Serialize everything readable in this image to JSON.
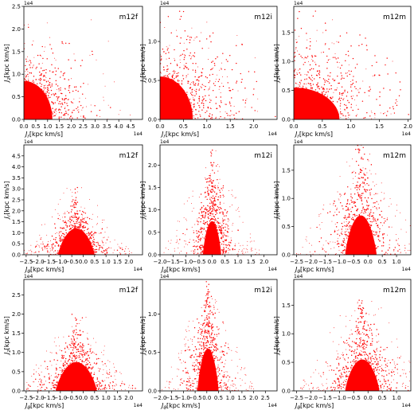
{
  "chart_data": [
    {
      "type": "scatter",
      "panel_label": "m12f",
      "xlabel_sym": "J",
      "xlabel_sub": "r",
      "ylabel_sym": "J",
      "ylabel_sub": "z",
      "units": "[kpc km/s]",
      "x_offset": "1e4",
      "y_offset": "1e4",
      "xlim": [
        0,
        5.0
      ],
      "ylim": [
        0,
        2.5
      ],
      "xticks": [
        "0.0",
        "0.5",
        "1.0",
        "1.5",
        "2.0",
        "2.5",
        "3.0",
        "3.5",
        "4.0",
        "4.5"
      ],
      "xtick_values": [
        0,
        0.5,
        1.0,
        1.5,
        2.0,
        2.5,
        3.0,
        3.5,
        4.0,
        4.5
      ],
      "yticks": [
        "0.0",
        "0.5",
        "1.0",
        "1.5",
        "2.0",
        "2.5"
      ],
      "ytick_values": [
        0,
        0.5,
        1.0,
        1.5,
        2.0,
        2.5
      ],
      "color": "#ff0000",
      "distribution": {
        "shape": "corner",
        "core": {
          "x_max": 1.2,
          "y_max": 0.85,
          "density": "saturated"
        },
        "halo": {
          "x_max": 2.0,
          "y_max": 1.25
        },
        "sparse": {
          "x_max": 4.6,
          "y_max": 2.4
        }
      }
    },
    {
      "type": "scatter",
      "panel_label": "m12i",
      "xlabel_sym": "J",
      "xlabel_sub": "r",
      "ylabel_sym": "J",
      "ylabel_sub": "z",
      "units": "[kpc km/s]",
      "x_offset": "1e4",
      "y_offset": "1e4",
      "xlim": [
        0,
        2.5
      ],
      "ylim": [
        0,
        1.45
      ],
      "xticks": [
        "0.0",
        "0.5",
        "1.0",
        "1.5",
        "2.0"
      ],
      "xtick_values": [
        0,
        0.5,
        1.0,
        1.5,
        2.0
      ],
      "yticks": [
        "0.0",
        "0.5",
        "1.0"
      ],
      "ytick_values": [
        0,
        0.5,
        1.0
      ],
      "color": "#ff0000",
      "distribution": {
        "shape": "corner",
        "core": {
          "x_max": 0.7,
          "y_max": 0.55,
          "density": "saturated"
        },
        "halo": {
          "x_max": 1.6,
          "y_max": 0.95
        },
        "sparse": {
          "x_max": 2.4,
          "y_max": 1.4
        }
      }
    },
    {
      "type": "scatter",
      "panel_label": "m12m",
      "xlabel_sym": "J",
      "xlabel_sub": "r",
      "ylabel_sym": "J",
      "ylabel_sub": "z",
      "units": "[kpc km/s]",
      "x_offset": "1e4",
      "y_offset": "1e4",
      "xlim": [
        0,
        2.05
      ],
      "ylim": [
        0,
        1.95
      ],
      "xticks": [
        "0.0",
        "0.5",
        "1.0",
        "1.5",
        "2.0"
      ],
      "xtick_values": [
        0,
        0.5,
        1.0,
        1.5,
        2.0
      ],
      "yticks": [
        "0.0",
        "0.5",
        "1.0",
        "1.5"
      ],
      "ytick_values": [
        0,
        0.5,
        1.0,
        1.5
      ],
      "color": "#ff0000",
      "distribution": {
        "shape": "corner",
        "core": {
          "x_max": 0.8,
          "y_max": 0.55,
          "density": "saturated"
        },
        "halo": {
          "x_max": 1.5,
          "y_max": 1.1
        },
        "sparse": {
          "x_max": 2.0,
          "y_max": 1.9
        }
      }
    },
    {
      "type": "scatter",
      "panel_label": "m12f",
      "xlabel_sym": "J",
      "xlabel_sub": "θ",
      "ylabel_sym": "J",
      "ylabel_sub": "r",
      "units": "[kpc km/s]",
      "x_offset": "1e4",
      "y_offset": "1e4",
      "xlim": [
        -2.6,
        2.6
      ],
      "ylim": [
        0,
        5.0
      ],
      "xticks": [
        "−2.5",
        "−2.0",
        "−1.5",
        "−1.0",
        "−0.5",
        "0.0",
        "0.5",
        "1.0",
        "1.5",
        "2.0"
      ],
      "xtick_values": [
        -2.5,
        -2.0,
        -1.5,
        -1.0,
        -0.5,
        0,
        0.5,
        1.0,
        1.5,
        2.0
      ],
      "yticks": [
        "0.0",
        "0.5",
        "1.0",
        "1.5",
        "2.0",
        "2.5",
        "3.0",
        "3.5",
        "4.0",
        "4.5"
      ],
      "ytick_values": [
        0,
        0.5,
        1.0,
        1.5,
        2.0,
        2.5,
        3.0,
        3.5,
        4.0,
        4.5
      ],
      "color": "#ff0000",
      "distribution": {
        "shape": "fan",
        "center_x": -0.3,
        "core": {
          "x_half": 0.8,
          "y_max": 1.2,
          "density": "saturated"
        },
        "halo": {
          "x_half": 1.6,
          "y_max": 2.0
        },
        "sparse": {
          "x_half": 2.5,
          "y_max": 3.3
        }
      }
    },
    {
      "type": "scatter",
      "panel_label": "m12i",
      "xlabel_sym": "J",
      "xlabel_sub": "θ",
      "ylabel_sym": "J",
      "ylabel_sub": "r",
      "units": "[kpc km/s]",
      "x_offset": "1e4",
      "y_offset": "1e4",
      "xlim": [
        -2.0,
        2.5
      ],
      "ylim": [
        0,
        2.45
      ],
      "xticks": [
        "−2.0",
        "−1.5",
        "−1.0",
        "−0.5",
        "0.0",
        "0.5",
        "1.0",
        "1.5",
        "2.0"
      ],
      "xtick_values": [
        -2.0,
        -1.5,
        -1.0,
        -0.5,
        0,
        0.5,
        1.0,
        1.5,
        2.0
      ],
      "yticks": [
        "0.0",
        "0.5",
        "1.0",
        "1.5",
        "2.0"
      ],
      "ytick_values": [
        0,
        0.5,
        1.0,
        1.5,
        2.0
      ],
      "color": "#ff0000",
      "distribution": {
        "shape": "fan",
        "center_x": 0.0,
        "core": {
          "x_half": 0.35,
          "y_max": 0.75,
          "density": "saturated"
        },
        "halo": {
          "x_half": 0.9,
          "y_max": 1.8
        },
        "sparse": {
          "x_half": 1.9,
          "y_max": 2.4
        }
      }
    },
    {
      "type": "scatter",
      "panel_label": "m12m",
      "xlabel_sym": "J",
      "xlabel_sub": "θ",
      "ylabel_sym": "J",
      "ylabel_sub": "r",
      "units": "[kpc km/s]",
      "x_offset": "1e4",
      "y_offset": "1e4",
      "xlim": [
        -2.6,
        1.5
      ],
      "ylim": [
        0,
        1.95
      ],
      "xticks": [
        "−2.5",
        "−2.0",
        "−1.5",
        "−1.0",
        "−0.5",
        "0.0",
        "0.5",
        "1.0"
      ],
      "xtick_values": [
        -2.5,
        -2.0,
        -1.5,
        -1.0,
        -0.5,
        0,
        0.5,
        1.0
      ],
      "yticks": [
        "0.0",
        "0.5",
        "1.0",
        "1.5"
      ],
      "ytick_values": [
        0,
        0.5,
        1.0,
        1.5
      ],
      "color": "#ff0000",
      "distribution": {
        "shape": "fan",
        "center_x": -0.25,
        "core": {
          "x_half": 0.55,
          "y_max": 0.7,
          "density": "saturated"
        },
        "halo": {
          "x_half": 1.3,
          "y_max": 1.5
        },
        "sparse": {
          "x_half": 2.3,
          "y_max": 1.9
        }
      }
    },
    {
      "type": "scatter",
      "panel_label": "m12f",
      "xlabel_sym": "J",
      "xlabel_sub": "θ",
      "ylabel_sym": "J",
      "ylabel_sub": "z",
      "units": "[kpc km/s]",
      "x_offset": "1e4",
      "y_offset": "1e4",
      "xlim": [
        -2.6,
        2.6
      ],
      "ylim": [
        0,
        2.9
      ],
      "xticks": [
        "−2.5",
        "−2.0",
        "−1.5",
        "−1.0",
        "−0.5",
        "0.0",
        "0.5",
        "1.0",
        "1.5",
        "2.0"
      ],
      "xtick_values": [
        -2.5,
        -2.0,
        -1.5,
        -1.0,
        -0.5,
        0,
        0.5,
        1.0,
        1.5,
        2.0
      ],
      "yticks": [
        "0.0",
        "0.5",
        "1.0",
        "1.5",
        "2.0",
        "2.5"
      ],
      "ytick_values": [
        0,
        0.5,
        1.0,
        1.5,
        2.0,
        2.5
      ],
      "color": "#ff0000",
      "distribution": {
        "shape": "fan",
        "center_x": -0.3,
        "core": {
          "x_half": 0.9,
          "y_max": 0.75,
          "density": "saturated"
        },
        "halo": {
          "x_half": 1.8,
          "y_max": 1.3
        },
        "sparse": {
          "x_half": 2.5,
          "y_max": 2.1
        }
      }
    },
    {
      "type": "scatter",
      "panel_label": "m12i",
      "xlabel_sym": "J",
      "xlabel_sub": "θ",
      "ylabel_sym": "J",
      "ylabel_sub": "z",
      "units": "[kpc km/s]",
      "x_offset": "1e4",
      "y_offset": "1e4",
      "xlim": [
        -2.0,
        3.0
      ],
      "ylim": [
        0,
        1.45
      ],
      "xticks": [
        "−2.0",
        "−1.5",
        "−1.0",
        "−0.5",
        "0.0",
        "0.5",
        "1.0",
        "1.5",
        "2.0",
        "2.5"
      ],
      "xtick_values": [
        -2.0,
        -1.5,
        -1.0,
        -0.5,
        0,
        0.5,
        1.0,
        1.5,
        2.0,
        2.5
      ],
      "yticks": [
        "0.0",
        "0.5",
        "1.0"
      ],
      "ytick_values": [
        0,
        0.5,
        1.0
      ],
      "color": "#ff0000",
      "distribution": {
        "shape": "fan",
        "center_x": 0.05,
        "core": {
          "x_half": 0.45,
          "y_max": 0.55,
          "density": "saturated"
        },
        "halo": {
          "x_half": 1.1,
          "y_max": 1.1
        },
        "sparse": {
          "x_half": 2.0,
          "y_max": 1.4
        }
      }
    },
    {
      "type": "scatter",
      "panel_label": "m12m",
      "xlabel_sym": "J",
      "xlabel_sub": "θ",
      "ylabel_sym": "J",
      "ylabel_sub": "z",
      "units": "[kpc km/s]",
      "x_offset": "1e4",
      "y_offset": "1e4",
      "xlim": [
        -2.6,
        1.5
      ],
      "ylim": [
        0,
        1.95
      ],
      "xticks": [
        "−2.5",
        "−2.0",
        "−1.5",
        "−1.0",
        "−0.5",
        "0.0",
        "0.5",
        "1.0"
      ],
      "xtick_values": [
        -2.5,
        -2.0,
        -1.5,
        -1.0,
        -0.5,
        0,
        0.5,
        1.0
      ],
      "yticks": [
        "0.0",
        "0.5",
        "1.0",
        "1.5"
      ],
      "ytick_values": [
        0,
        0.5,
        1.0,
        1.5
      ],
      "color": "#ff0000",
      "distribution": {
        "shape": "fan",
        "center_x": -0.2,
        "core": {
          "x_half": 0.6,
          "y_max": 0.55,
          "density": "saturated"
        },
        "halo": {
          "x_half": 1.3,
          "y_max": 1.2
        },
        "sparse": {
          "x_half": 2.3,
          "y_max": 1.9
        }
      }
    }
  ]
}
